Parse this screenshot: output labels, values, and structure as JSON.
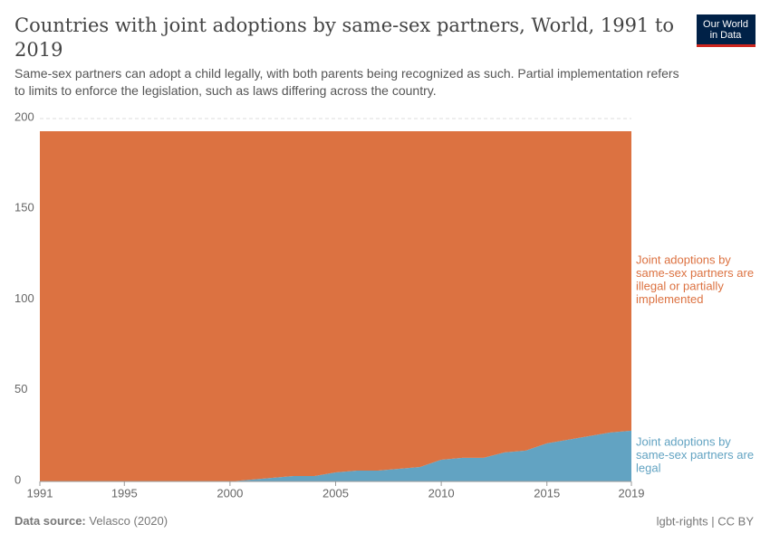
{
  "chart_data": {
    "type": "stacked-area",
    "title": "Countries with joint adoptions by same-sex partners, World, 1991 to 2019",
    "subtitle": "Same-sex partners can adopt a child legally, with both parents being recognized as such. Partial implementation refers to limits to enforce the legislation, such as laws differing across the country.",
    "logo": [
      "Our World",
      "in Data"
    ],
    "source_label": "Data source:",
    "source": "Velasco (2020)",
    "footer_right": "lgbt-rights | CC BY",
    "x": [
      1991,
      1992,
      1993,
      1994,
      1995,
      1996,
      1997,
      1998,
      1999,
      2000,
      2001,
      2002,
      2003,
      2004,
      2005,
      2006,
      2007,
      2008,
      2009,
      2010,
      2011,
      2012,
      2013,
      2014,
      2015,
      2016,
      2017,
      2018,
      2019
    ],
    "series": [
      {
        "name": "Joint adoptions by same-sex partners are legal",
        "color": "#62a3c2",
        "values": [
          0,
          0,
          0,
          0,
          0,
          0,
          0,
          0,
          0,
          0,
          1,
          2,
          3,
          3,
          5,
          6,
          6,
          7,
          8,
          12,
          13,
          13,
          16,
          17,
          21,
          23,
          25,
          27,
          28
        ]
      },
      {
        "name": "Joint adoptions by same-sex partners are illegal or partially implemented",
        "color": "#dc7241",
        "values": [
          193,
          193,
          193,
          193,
          193,
          193,
          193,
          193,
          193,
          193,
          192,
          191,
          190,
          190,
          188,
          187,
          187,
          186,
          185,
          181,
          180,
          180,
          177,
          176,
          172,
          170,
          168,
          166,
          165
        ]
      }
    ],
    "xlim": [
      1991,
      2019
    ],
    "xticks": [
      1991,
      1995,
      2000,
      2005,
      2010,
      2015,
      2019
    ],
    "ylim": [
      0,
      200
    ],
    "yticks": [
      0,
      50,
      100,
      150,
      200
    ],
    "grid": true
  }
}
